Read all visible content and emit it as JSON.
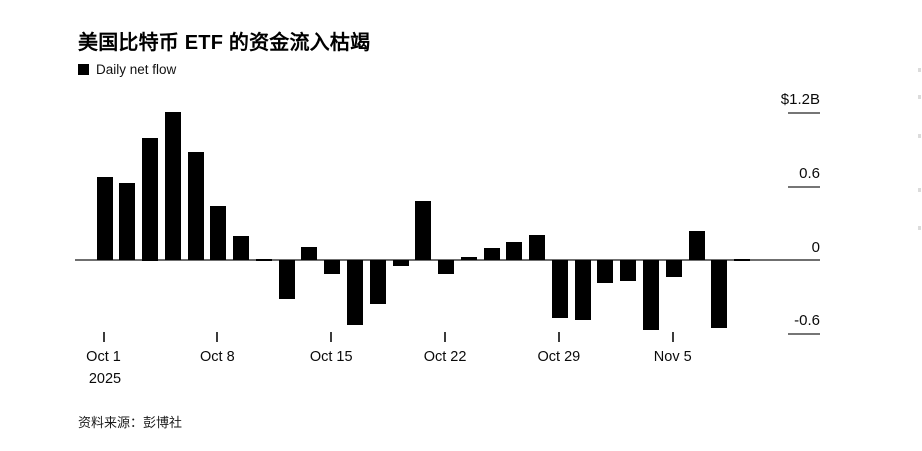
{
  "header": {
    "title": "美国比特币 ETF 的资金流入枯竭",
    "legend_label": "Daily net flow"
  },
  "footer": {
    "source": "资料来源：彭博社"
  },
  "colors": {
    "bar": "#000000",
    "axis_line": "#6f6f6f",
    "grid_dash": "#767676",
    "x_tick": "#3c3c3c",
    "text": "#0a0a0a",
    "legend_swatch": "#000000",
    "background": "#ffffff"
  },
  "chart_data": {
    "type": "bar",
    "title": "美国比特币 ETF 的资金流入枯竭",
    "series_name": "Daily net flow",
    "unit": "USD billions",
    "categories": [
      "Oct 1",
      "Oct 2",
      "Oct 3",
      "Oct 6",
      "Oct 7",
      "Oct 8",
      "Oct 9",
      "Oct 10",
      "Oct 13",
      "Oct 14",
      "Oct 15",
      "Oct 16",
      "Oct 17",
      "Oct 20",
      "Oct 21",
      "Oct 22",
      "Oct 23",
      "Oct 24",
      "Oct 27",
      "Oct 28",
      "Oct 29",
      "Oct 30",
      "Oct 31",
      "Nov 3",
      "Nov 4",
      "Nov 5",
      "Nov 6",
      "Nov 7",
      "Nov 10"
    ],
    "values": [
      0.68,
      0.63,
      1.0,
      1.21,
      0.88,
      0.44,
      0.2,
      0.01,
      -0.32,
      0.11,
      -0.11,
      -0.53,
      -0.36,
      -0.05,
      0.48,
      -0.11,
      0.03,
      0.1,
      0.15,
      0.21,
      -0.47,
      -0.49,
      -0.19,
      -0.17,
      -0.57,
      -0.14,
      0.24,
      -0.55,
      0.01
    ],
    "x_tick_labels": [
      "Oct 1",
      "Oct 8",
      "Oct 15",
      "Oct 22",
      "Oct 29",
      "Nov 5"
    ],
    "x_year_label": "2025",
    "y_tick_labels": [
      "$1.2B",
      "0.6",
      "0",
      "-0.6"
    ],
    "y_tick_values": [
      1.2,
      0.6,
      0,
      -0.6
    ],
    "ylim": [
      -0.72,
      1.35
    ],
    "bar_color": "#000000",
    "grid": "short right-side dashes at y ticks, long gray zero line",
    "legend_position": "top-left",
    "y_axis_side": "right"
  }
}
